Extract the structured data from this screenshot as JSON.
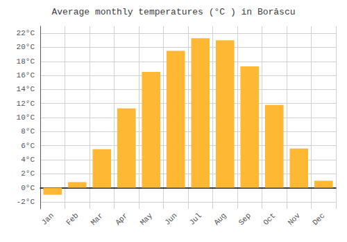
{
  "chart_data": {
    "type": "bar",
    "title": "Average monthly temperatures (°C ) in Borăscu",
    "categories": [
      "Jan",
      "Feb",
      "Mar",
      "Apr",
      "May",
      "Jun",
      "Jul",
      "Aug",
      "Sep",
      "Oct",
      "Nov",
      "Dec"
    ],
    "values": [
      -1.0,
      0.8,
      5.5,
      11.3,
      16.5,
      19.5,
      21.3,
      21.0,
      17.3,
      11.8,
      5.6,
      1.0
    ],
    "color": "#FFB833",
    "ylim": [
      -3,
      23
    ],
    "yticks": [
      {
        "value": -2,
        "label": "-2°C"
      },
      {
        "value": 0,
        "label": "0°C"
      },
      {
        "value": 2,
        "label": "2°C"
      },
      {
        "value": 4,
        "label": "4°C"
      },
      {
        "value": 6,
        "label": "6°C"
      },
      {
        "value": 8,
        "label": "8°C"
      },
      {
        "value": 10,
        "label": "10°C"
      },
      {
        "value": 12,
        "label": "12°C"
      },
      {
        "value": 14,
        "label": "14°C"
      },
      {
        "value": 16,
        "label": "16°C"
      },
      {
        "value": 18,
        "label": "18°C"
      },
      {
        "value": 20,
        "label": "20°C"
      },
      {
        "value": 22,
        "label": "22°C"
      }
    ],
    "grid": true
  }
}
